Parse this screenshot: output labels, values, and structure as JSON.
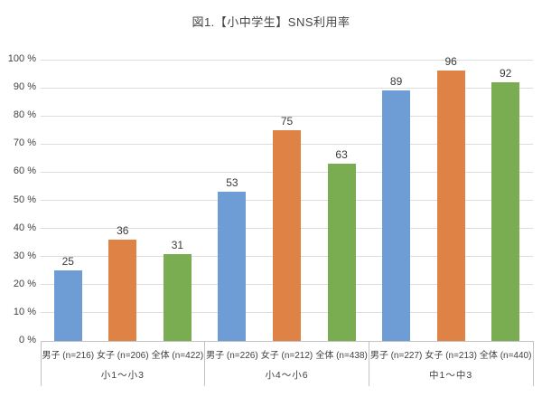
{
  "title": "図1.【小中学生】SNS利用率",
  "chart_data": {
    "type": "bar",
    "title": "図1.【小中学生】SNS利用率",
    "xlabel": "",
    "ylabel": "",
    "legend": "none",
    "grid": "horizontal",
    "y_axis": {
      "min": 0,
      "max": 100,
      "step": 10,
      "tick_suffix": " %"
    },
    "ylim": [
      0,
      100
    ],
    "groups": [
      {
        "label": "小1～小3",
        "bars": [
          {
            "label": "男子 (n=216)",
            "series": "男子",
            "value": 25,
            "color_key": "blue"
          },
          {
            "label": "女子 (n=206)",
            "series": "女子",
            "value": 36,
            "color_key": "orange"
          },
          {
            "label": "全体 (n=422)",
            "series": "全体",
            "value": 31,
            "color_key": "green"
          }
        ]
      },
      {
        "label": "小4～小6",
        "bars": [
          {
            "label": "男子 (n=226)",
            "series": "男子",
            "value": 53,
            "color_key": "blue"
          },
          {
            "label": "女子 (n=212)",
            "series": "女子",
            "value": 75,
            "color_key": "orange"
          },
          {
            "label": "全体 (n=438)",
            "series": "全体",
            "value": 63,
            "color_key": "green"
          }
        ]
      },
      {
        "label": "中1～中3",
        "bars": [
          {
            "label": "男子 (n=227)",
            "series": "男子",
            "value": 89,
            "color_key": "blue"
          },
          {
            "label": "女子 (n=213)",
            "series": "女子",
            "value": 96,
            "color_key": "orange"
          },
          {
            "label": "全体 (n=440)",
            "series": "全体",
            "value": 92,
            "color_key": "green"
          }
        ]
      }
    ],
    "colors": {
      "blue": "#6d9dd4",
      "orange": "#de8245",
      "green": "#7aad52",
      "gridline": "#dddddd",
      "axis_line": "#c3c3c3",
      "text": "#404040"
    }
  }
}
